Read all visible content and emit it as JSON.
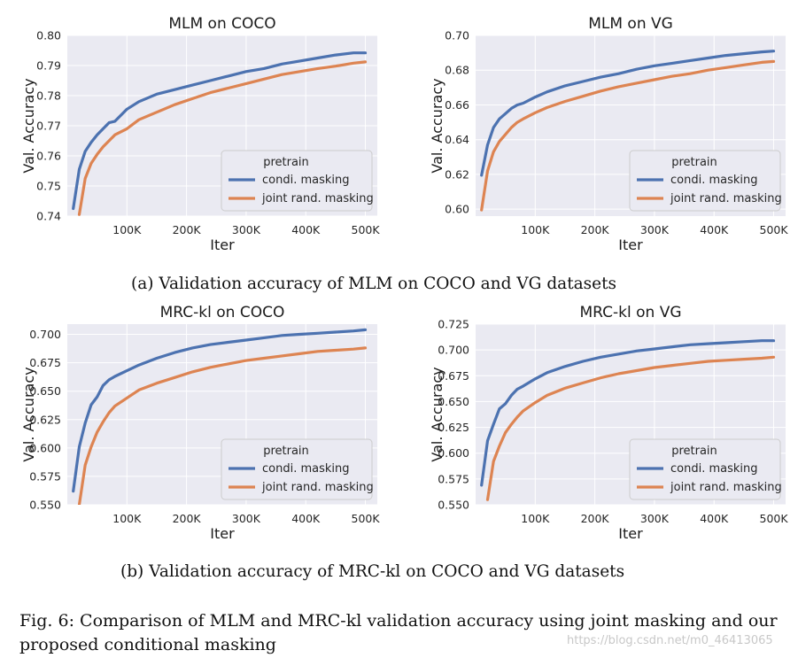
{
  "captions": {
    "a": "(a) Validation accuracy of MLM on COCO and VG datasets",
    "b": "(b) Validation accuracy of MRC-kl on COCO and VG datasets",
    "figure": "Fig. 6: Comparison of MLM and MRC-kl validation accuracy using joint masking and our proposed conditional masking"
  },
  "watermark": "https://blog.csdn.net/m0_46413065",
  "colors": {
    "condi": "#4c72b0",
    "joint": "#dd8452",
    "panel_bg": "#eaeaf2",
    "grid": "#ffffff"
  },
  "chart_data": [
    {
      "type": "line",
      "title": "MLM on COCO",
      "xlabel": "Iter",
      "ylabel": "Val. Accuracy",
      "xlim": [
        0,
        520000
      ],
      "ylim": [
        0.74,
        0.8
      ],
      "yticks": [
        "0.74",
        "0.75",
        "0.76",
        "0.77",
        "0.78",
        "0.79",
        "0.80"
      ],
      "xticks": [
        "100K",
        "200K",
        "300K",
        "400K",
        "500K"
      ],
      "legend_title": "pretrain",
      "legend_position": "lower-right",
      "series": [
        {
          "name": "condi. masking",
          "color": "#4c72b0",
          "x": [
            10000,
            20000,
            30000,
            40000,
            50000,
            60000,
            70000,
            80000,
            100000,
            120000,
            150000,
            180000,
            210000,
            240000,
            270000,
            300000,
            330000,
            360000,
            390000,
            420000,
            450000,
            480000,
            500000
          ],
          "y": [
            0.7425,
            0.7555,
            0.7615,
            0.7645,
            0.767,
            0.769,
            0.771,
            0.7715,
            0.7755,
            0.778,
            0.7805,
            0.782,
            0.7835,
            0.785,
            0.7865,
            0.788,
            0.789,
            0.7905,
            0.7915,
            0.7925,
            0.7935,
            0.7942,
            0.7942
          ]
        },
        {
          "name": "joint rand. masking",
          "color": "#dd8452",
          "x": [
            20000,
            30000,
            40000,
            50000,
            60000,
            70000,
            80000,
            100000,
            120000,
            150000,
            180000,
            210000,
            240000,
            270000,
            300000,
            330000,
            360000,
            390000,
            420000,
            450000,
            480000,
            500000
          ],
          "y": [
            0.7405,
            0.7525,
            0.7575,
            0.7605,
            0.763,
            0.765,
            0.767,
            0.769,
            0.772,
            0.7745,
            0.777,
            0.779,
            0.781,
            0.7825,
            0.784,
            0.7855,
            0.787,
            0.788,
            0.789,
            0.7898,
            0.7908,
            0.7912
          ]
        }
      ]
    },
    {
      "type": "line",
      "title": "MLM on VG",
      "xlabel": "Iter",
      "ylabel": "Val. Accuracy",
      "xlim": [
        0,
        520000
      ],
      "ylim": [
        0.596,
        0.7
      ],
      "yticks": [
        "0.60",
        "0.62",
        "0.64",
        "0.66",
        "0.68",
        "0.70"
      ],
      "xticks": [
        "100K",
        "200K",
        "300K",
        "400K",
        "500K"
      ],
      "legend_title": "pretrain",
      "legend_position": "lower-right",
      "series": [
        {
          "name": "condi. masking",
          "color": "#4c72b0",
          "x": [
            10000,
            20000,
            30000,
            40000,
            50000,
            60000,
            70000,
            80000,
            100000,
            120000,
            150000,
            180000,
            210000,
            240000,
            270000,
            300000,
            330000,
            360000,
            390000,
            420000,
            450000,
            480000,
            500000
          ],
          "y": [
            0.6195,
            0.637,
            0.647,
            0.652,
            0.655,
            0.658,
            0.66,
            0.661,
            0.6645,
            0.6675,
            0.671,
            0.6735,
            0.676,
            0.678,
            0.6805,
            0.6825,
            0.684,
            0.6855,
            0.687,
            0.6885,
            0.6895,
            0.6905,
            0.691
          ]
        },
        {
          "name": "joint rand. masking",
          "color": "#dd8452",
          "x": [
            10000,
            20000,
            30000,
            40000,
            50000,
            60000,
            70000,
            80000,
            100000,
            120000,
            150000,
            180000,
            210000,
            240000,
            270000,
            300000,
            330000,
            360000,
            390000,
            420000,
            450000,
            480000,
            500000
          ],
          "y": [
            0.5995,
            0.622,
            0.633,
            0.639,
            0.643,
            0.647,
            0.65,
            0.652,
            0.6555,
            0.6585,
            0.662,
            0.665,
            0.668,
            0.6705,
            0.6725,
            0.6745,
            0.6765,
            0.678,
            0.68,
            0.6815,
            0.683,
            0.6845,
            0.685
          ]
        }
      ]
    },
    {
      "type": "line",
      "title": "MRC-kl on COCO",
      "xlabel": "Iter",
      "ylabel": "Val. Accuracy",
      "xlim": [
        0,
        520000
      ],
      "ylim": [
        0.55,
        0.709
      ],
      "yticks": [
        "0.550",
        "0.575",
        "0.600",
        "0.625",
        "0.650",
        "0.675",
        "0.700"
      ],
      "xticks": [
        "100K",
        "200K",
        "300K",
        "400K",
        "500K"
      ],
      "legend_title": "pretrain",
      "legend_position": "lower-right",
      "series": [
        {
          "name": "condi. masking",
          "color": "#4c72b0",
          "x": [
            10000,
            20000,
            30000,
            40000,
            50000,
            60000,
            70000,
            80000,
            100000,
            120000,
            150000,
            180000,
            210000,
            240000,
            270000,
            300000,
            330000,
            360000,
            390000,
            420000,
            450000,
            480000,
            500000
          ],
          "y": [
            0.562,
            0.601,
            0.622,
            0.638,
            0.645,
            0.655,
            0.66,
            0.663,
            0.668,
            0.673,
            0.679,
            0.684,
            0.688,
            0.691,
            0.693,
            0.695,
            0.697,
            0.699,
            0.7,
            0.701,
            0.702,
            0.703,
            0.704
          ]
        },
        {
          "name": "joint rand. masking",
          "color": "#dd8452",
          "x": [
            20000,
            30000,
            40000,
            50000,
            60000,
            70000,
            80000,
            100000,
            120000,
            150000,
            180000,
            210000,
            240000,
            270000,
            300000,
            330000,
            360000,
            390000,
            420000,
            450000,
            480000,
            500000
          ],
          "y": [
            0.55,
            0.585,
            0.601,
            0.614,
            0.623,
            0.631,
            0.637,
            0.644,
            0.651,
            0.657,
            0.662,
            0.667,
            0.671,
            0.674,
            0.677,
            0.679,
            0.681,
            0.683,
            0.685,
            0.686,
            0.687,
            0.688
          ]
        }
      ]
    },
    {
      "type": "line",
      "title": "MRC-kl on VG",
      "xlabel": "Iter",
      "ylabel": "Val. Accuracy",
      "xlim": [
        0,
        520000
      ],
      "ylim": [
        0.55,
        0.725
      ],
      "yticks": [
        "0.550",
        "0.575",
        "0.600",
        "0.625",
        "0.650",
        "0.675",
        "0.700",
        "0.725"
      ],
      "xticks": [
        "100K",
        "200K",
        "300K",
        "400K",
        "500K"
      ],
      "legend_title": "pretrain",
      "legend_position": "lower-right",
      "series": [
        {
          "name": "condi. masking",
          "color": "#4c72b0",
          "x": [
            10000,
            20000,
            30000,
            40000,
            50000,
            60000,
            70000,
            80000,
            100000,
            120000,
            150000,
            180000,
            210000,
            240000,
            270000,
            300000,
            330000,
            360000,
            390000,
            420000,
            450000,
            480000,
            500000
          ],
          "y": [
            0.569,
            0.612,
            0.628,
            0.643,
            0.648,
            0.656,
            0.662,
            0.665,
            0.672,
            0.678,
            0.684,
            0.689,
            0.693,
            0.696,
            0.699,
            0.701,
            0.703,
            0.705,
            0.706,
            0.707,
            0.708,
            0.709,
            0.709
          ]
        },
        {
          "name": "joint rand. masking",
          "color": "#dd8452",
          "x": [
            20000,
            30000,
            40000,
            50000,
            60000,
            70000,
            80000,
            100000,
            120000,
            150000,
            180000,
            210000,
            240000,
            270000,
            300000,
            330000,
            360000,
            390000,
            420000,
            450000,
            480000,
            500000
          ],
          "y": [
            0.555,
            0.592,
            0.607,
            0.62,
            0.628,
            0.635,
            0.641,
            0.649,
            0.656,
            0.663,
            0.668,
            0.673,
            0.677,
            0.68,
            0.683,
            0.685,
            0.687,
            0.689,
            0.69,
            0.691,
            0.692,
            0.693
          ]
        }
      ]
    }
  ]
}
